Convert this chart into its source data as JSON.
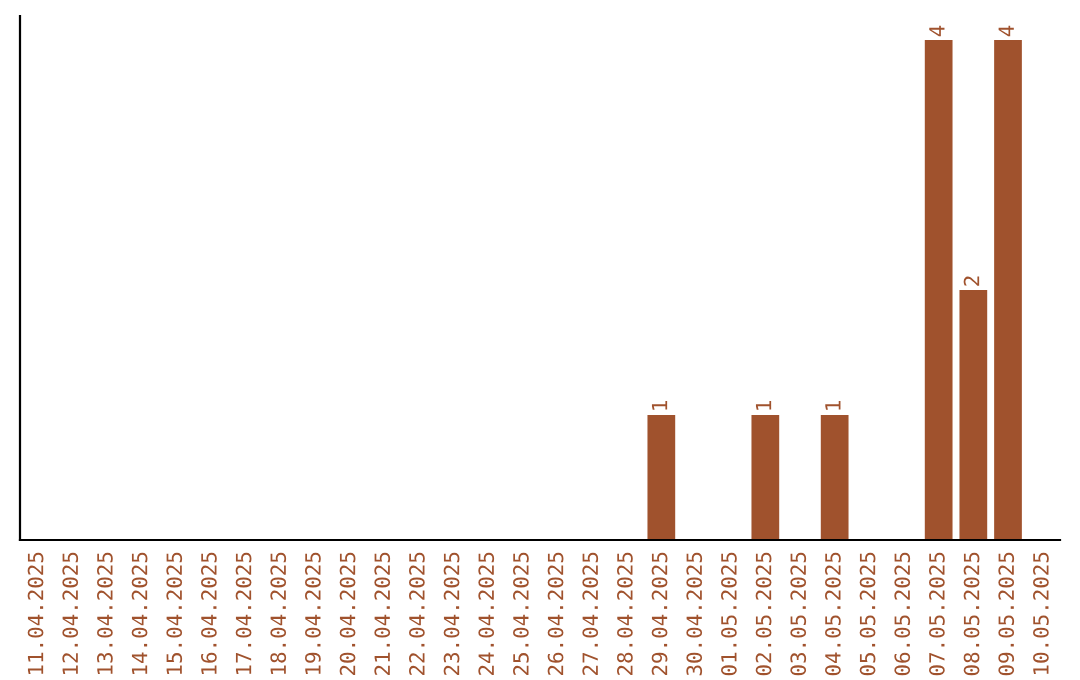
{
  "chart_data": {
    "type": "bar",
    "categories": [
      "11.04.2025",
      "12.04.2025",
      "13.04.2025",
      "14.04.2025",
      "15.04.2025",
      "16.04.2025",
      "17.04.2025",
      "18.04.2025",
      "19.04.2025",
      "20.04.2025",
      "21.04.2025",
      "22.04.2025",
      "23.04.2025",
      "24.04.2025",
      "25.04.2025",
      "26.04.2025",
      "27.04.2025",
      "28.04.2025",
      "29.04.2025",
      "30.04.2025",
      "01.05.2025",
      "02.05.2025",
      "03.05.2025",
      "04.05.2025",
      "05.05.2025",
      "06.05.2025",
      "07.05.2025",
      "08.05.2025",
      "09.05.2025",
      "10.05.2025"
    ],
    "values": [
      null,
      null,
      null,
      null,
      null,
      null,
      null,
      null,
      null,
      null,
      null,
      null,
      null,
      null,
      null,
      null,
      null,
      null,
      1,
      null,
      null,
      1,
      null,
      1,
      null,
      null,
      4,
      2,
      4,
      null
    ],
    "value_labels": [
      null,
      null,
      null,
      null,
      null,
      null,
      null,
      null,
      null,
      null,
      null,
      null,
      null,
      null,
      null,
      null,
      null,
      null,
      "1",
      null,
      null,
      "1",
      null,
      "1",
      null,
      null,
      "4",
      "2",
      "4",
      null
    ],
    "color": "#a0522d",
    "tick_labels": "x",
    "grid": false,
    "legend": false
  }
}
